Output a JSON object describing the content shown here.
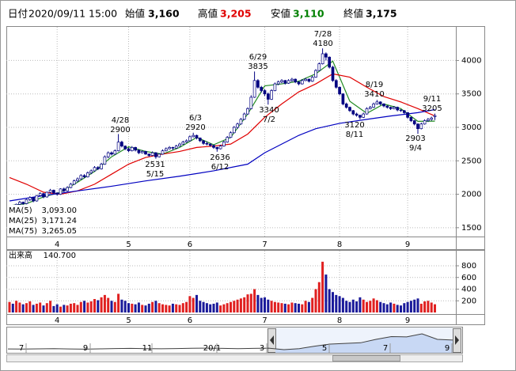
{
  "header": {
    "date_label": "日付",
    "date": "2020/09/11 15:00",
    "open_label": "始値",
    "open": {
      "value": 3160,
      "label": "3,160"
    },
    "high_label": "高値",
    "high": {
      "value": 3205,
      "label": "3,205"
    },
    "low_label": "安値",
    "low": {
      "value": 3110,
      "label": "3,110"
    },
    "close_label": "終値",
    "close": {
      "value": 3175,
      "label": "3,175"
    }
  },
  "chart_data": [
    {
      "type": "candlestick",
      "ylim": [
        1380,
        4490
      ],
      "yticks": [
        1500,
        2000,
        2500,
        3000,
        3500,
        4000
      ],
      "grid": true,
      "x_labels": [
        "4",
        "5",
        "6",
        "7",
        "8",
        "9"
      ],
      "up_color": "#ffffff",
      "down_color": "#000080",
      "edge_color": "#000080",
      "ohlc": [
        [
          1800,
          1840,
          1770,
          1820
        ],
        [
          1820,
          1830,
          1770,
          1790
        ],
        [
          1790,
          1860,
          1780,
          1850
        ],
        [
          1850,
          1900,
          1840,
          1880
        ],
        [
          1880,
          1890,
          1840,
          1860
        ],
        [
          1860,
          1930,
          1850,
          1920
        ],
        [
          1920,
          1970,
          1900,
          1950
        ],
        [
          1950,
          1960,
          1880,
          1900
        ],
        [
          1900,
          1990,
          1890,
          1980
        ],
        [
          1980,
          2030,
          1970,
          2010
        ],
        [
          2010,
          2020,
          1940,
          1960
        ],
        [
          1960,
          2040,
          1950,
          2030
        ],
        [
          2030,
          2080,
          2010,
          2060
        ],
        [
          2060,
          2070,
          2000,
          2020
        ],
        [
          2020,
          2030,
          1980,
          2000
        ],
        [
          2000,
          2090,
          1990,
          2080
        ],
        [
          2080,
          2100,
          2030,
          2050
        ],
        [
          2050,
          2120,
          2040,
          2100
        ],
        [
          2100,
          2170,
          2090,
          2150
        ],
        [
          2150,
          2220,
          2140,
          2200
        ],
        [
          2200,
          2250,
          2180,
          2230
        ],
        [
          2230,
          2300,
          2220,
          2280
        ],
        [
          2280,
          2300,
          2240,
          2260
        ],
        [
          2260,
          2340,
          2250,
          2320
        ],
        [
          2320,
          2370,
          2300,
          2350
        ],
        [
          2350,
          2420,
          2340,
          2400
        ],
        [
          2400,
          2420,
          2360,
          2380
        ],
        [
          2380,
          2470,
          2370,
          2450
        ],
        [
          2450,
          2580,
          2440,
          2560
        ],
        [
          2560,
          2640,
          2540,
          2620
        ],
        [
          2620,
          2640,
          2580,
          2600
        ],
        [
          2600,
          2670,
          2590,
          2650
        ],
        [
          2650,
          2900,
          2640,
          2780
        ],
        [
          2780,
          2800,
          2700,
          2720
        ],
        [
          2720,
          2730,
          2660,
          2680
        ],
        [
          2680,
          2700,
          2630,
          2650
        ],
        [
          2650,
          2720,
          2640,
          2700
        ],
        [
          2700,
          2710,
          2640,
          2660
        ],
        [
          2660,
          2670,
          2600,
          2620
        ],
        [
          2620,
          2660,
          2610,
          2640
        ],
        [
          2640,
          2650,
          2590,
          2600
        ],
        [
          2600,
          2610,
          2560,
          2580
        ],
        [
          2580,
          2640,
          2570,
          2620
        ],
        [
          2620,
          2630,
          2531,
          2560
        ],
        [
          2560,
          2610,
          2550,
          2600
        ],
        [
          2600,
          2670,
          2590,
          2650
        ],
        [
          2650,
          2700,
          2640,
          2680
        ],
        [
          2680,
          2720,
          2670,
          2700
        ],
        [
          2700,
          2710,
          2660,
          2690
        ],
        [
          2690,
          2740,
          2680,
          2720
        ],
        [
          2720,
          2770,
          2710,
          2750
        ],
        [
          2750,
          2800,
          2740,
          2780
        ],
        [
          2780,
          2820,
          2770,
          2800
        ],
        [
          2800,
          2880,
          2790,
          2860
        ],
        [
          2860,
          2920,
          2850,
          2880
        ],
        [
          2880,
          2890,
          2820,
          2840
        ],
        [
          2840,
          2850,
          2780,
          2800
        ],
        [
          2800,
          2810,
          2740,
          2760
        ],
        [
          2760,
          2790,
          2730,
          2750
        ],
        [
          2750,
          2760,
          2710,
          2730
        ],
        [
          2730,
          2740,
          2680,
          2700
        ],
        [
          2700,
          2710,
          2636,
          2680
        ],
        [
          2680,
          2740,
          2670,
          2720
        ],
        [
          2720,
          2800,
          2710,
          2780
        ],
        [
          2780,
          2870,
          2770,
          2850
        ],
        [
          2850,
          2940,
          2840,
          2920
        ],
        [
          2920,
          3020,
          2910,
          3000
        ],
        [
          3000,
          3070,
          2980,
          3050
        ],
        [
          3050,
          3140,
          3040,
          3120
        ],
        [
          3120,
          3220,
          3110,
          3200
        ],
        [
          3200,
          3300,
          3190,
          3280
        ],
        [
          3280,
          3480,
          3270,
          3450
        ],
        [
          3450,
          3835,
          3440,
          3700
        ],
        [
          3700,
          3720,
          3580,
          3600
        ],
        [
          3600,
          3620,
          3520,
          3550
        ],
        [
          3550,
          3570,
          3470,
          3500
        ],
        [
          3500,
          3520,
          3340,
          3420
        ],
        [
          3420,
          3570,
          3410,
          3550
        ],
        [
          3550,
          3670,
          3540,
          3650
        ],
        [
          3650,
          3700,
          3630,
          3680
        ],
        [
          3680,
          3720,
          3660,
          3700
        ],
        [
          3700,
          3710,
          3640,
          3660
        ],
        [
          3660,
          3720,
          3650,
          3700
        ],
        [
          3700,
          3740,
          3680,
          3720
        ],
        [
          3720,
          3730,
          3660,
          3680
        ],
        [
          3680,
          3690,
          3630,
          3650
        ],
        [
          3650,
          3720,
          3640,
          3700
        ],
        [
          3700,
          3740,
          3690,
          3720
        ],
        [
          3720,
          3730,
          3670,
          3690
        ],
        [
          3690,
          3770,
          3680,
          3750
        ],
        [
          3750,
          3870,
          3740,
          3850
        ],
        [
          3850,
          3970,
          3840,
          3950
        ],
        [
          3950,
          4180,
          3940,
          4100
        ],
        [
          4100,
          4120,
          4000,
          4050
        ],
        [
          4050,
          4060,
          3880,
          3900
        ],
        [
          3900,
          3920,
          3680,
          3700
        ],
        [
          3700,
          3720,
          3580,
          3600
        ],
        [
          3600,
          3610,
          3480,
          3500
        ],
        [
          3500,
          3510,
          3330,
          3350
        ],
        [
          3350,
          3370,
          3280,
          3300
        ],
        [
          3300,
          3310,
          3230,
          3250
        ],
        [
          3250,
          3260,
          3180,
          3200
        ],
        [
          3200,
          3220,
          3160,
          3180
        ],
        [
          3180,
          3190,
          3120,
          3150
        ],
        [
          3150,
          3220,
          3140,
          3200
        ],
        [
          3200,
          3300,
          3190,
          3280
        ],
        [
          3280,
          3320,
          3270,
          3300
        ],
        [
          3300,
          3370,
          3290,
          3350
        ],
        [
          3350,
          3410,
          3340,
          3380
        ],
        [
          3380,
          3390,
          3330,
          3350
        ],
        [
          3350,
          3360,
          3300,
          3320
        ],
        [
          3320,
          3330,
          3280,
          3300
        ],
        [
          3300,
          3310,
          3260,
          3280
        ],
        [
          3280,
          3320,
          3270,
          3300
        ],
        [
          3300,
          3310,
          3240,
          3260
        ],
        [
          3260,
          3270,
          3230,
          3250
        ],
        [
          3250,
          3260,
          3200,
          3220
        ],
        [
          3220,
          3230,
          3130,
          3150
        ],
        [
          3150,
          3160,
          3080,
          3100
        ],
        [
          3100,
          3110,
          3030,
          3050
        ],
        [
          3050,
          3060,
          2903,
          2980
        ],
        [
          2980,
          3070,
          2970,
          3050
        ],
        [
          3050,
          3120,
          3040,
          3100
        ],
        [
          3100,
          3140,
          3080,
          3120
        ],
        [
          3120,
          3160,
          3100,
          3140
        ],
        [
          3160,
          3205,
          3110,
          3175
        ]
      ],
      "ma": [
        {
          "name": "MA(5)",
          "color": "#228b22",
          "last_value": 3093,
          "last_value_label": "3,093.00",
          "x": [
            0,
            5,
            10,
            15,
            20,
            25,
            30,
            35,
            40,
            45,
            50,
            55,
            60,
            65,
            70,
            75,
            80,
            85,
            90,
            95,
            100,
            105,
            110,
            115,
            120,
            125
          ],
          "values": [
            1830,
            1860,
            1960,
            2030,
            2180,
            2340,
            2560,
            2710,
            2640,
            2600,
            2700,
            2850,
            2740,
            2850,
            3200,
            3620,
            3650,
            3690,
            3800,
            3990,
            3390,
            3210,
            3350,
            3280,
            3090,
            3093
          ]
        },
        {
          "name": "MA(25)",
          "color": "#e00000",
          "last_value": 3171.24,
          "last_value_label": "3,171.24",
          "x": [
            0,
            5,
            10,
            15,
            20,
            25,
            30,
            35,
            40,
            45,
            50,
            55,
            60,
            65,
            70,
            75,
            80,
            85,
            90,
            95,
            100,
            105,
            110,
            115,
            120,
            125
          ],
          "values": [
            2250,
            2150,
            2030,
            2000,
            2050,
            2150,
            2300,
            2450,
            2550,
            2600,
            2640,
            2700,
            2720,
            2750,
            2900,
            3150,
            3350,
            3530,
            3650,
            3800,
            3750,
            3600,
            3460,
            3380,
            3280,
            3171.24
          ]
        },
        {
          "name": "MA(75)",
          "color": "#0000c0",
          "last_value": 3265.05,
          "last_value_label": "3,265.05",
          "x": [
            0,
            10,
            20,
            30,
            40,
            50,
            60,
            70,
            75,
            80,
            85,
            90,
            97,
            105,
            112,
            120,
            125
          ],
          "values": [
            1900,
            1980,
            2050,
            2120,
            2200,
            2270,
            2350,
            2450,
            2620,
            2750,
            2880,
            2980,
            3060,
            3120,
            3170,
            3220,
            3265.05
          ]
        }
      ],
      "annotations": [
        {
          "date": "4/28",
          "value": 2900
        },
        {
          "date": "5/15",
          "value": 2531
        },
        {
          "date": "6/3",
          "value": 2920
        },
        {
          "date": "6/12",
          "value": 2636
        },
        {
          "date": "6/29",
          "value": 3835
        },
        {
          "date": "7/2",
          "value": 3340
        },
        {
          "date": "7/28",
          "value": 4180
        },
        {
          "date": "8/19",
          "value": 3410
        },
        {
          "date": "8/11",
          "value": 3120
        },
        {
          "date": "9/4",
          "value": 2903
        },
        {
          "date": "9/11",
          "value": 3205
        }
      ]
    },
    {
      "type": "bar",
      "title": "出来高",
      "last": {
        "value": 140.7,
        "label": "140.700"
      },
      "ylim": [
        0,
        990
      ],
      "yticks": [
        200,
        400,
        600,
        800
      ],
      "grid": true,
      "x_labels": [
        "4",
        "5",
        "6",
        "7",
        "8",
        "9"
      ],
      "up_color": "#e02020",
      "down_color": "#1a1a9a",
      "values": [
        180,
        150,
        200,
        170,
        140,
        160,
        190,
        130,
        150,
        170,
        120,
        160,
        200,
        110,
        140,
        100,
        130,
        120,
        150,
        160,
        130,
        180,
        200,
        170,
        190,
        230,
        210,
        260,
        300,
        250,
        200,
        180,
        320,
        220,
        200,
        160,
        150,
        140,
        170,
        130,
        120,
        150,
        180,
        200,
        160,
        140,
        130,
        120,
        150,
        140,
        130,
        160,
        180,
        280,
        250,
        300,
        200,
        180,
        160,
        140,
        150,
        170,
        120,
        140,
        160,
        180,
        200,
        220,
        240,
        260,
        310,
        320,
        400,
        300,
        250,
        260,
        220,
        200,
        180,
        170,
        160,
        150,
        140,
        170,
        160,
        150,
        140,
        200,
        180,
        250,
        400,
        520,
        870,
        650,
        400,
        350,
        300,
        280,
        250,
        200,
        180,
        220,
        190,
        260,
        220,
        180,
        200,
        240,
        210,
        180,
        160,
        140,
        170,
        150,
        130,
        120,
        160,
        180,
        200,
        220,
        240,
        150,
        190,
        200,
        170,
        140.7
      ]
    },
    {
      "type": "line",
      "x_labels": [
        "7",
        "9",
        "11",
        "20/1",
        "3",
        "5",
        "7",
        "9"
      ],
      "color": "#404040",
      "fill": "#c8d8f4",
      "values": [
        1900,
        1880,
        1920,
        1950,
        1900,
        1870,
        1920,
        1960,
        1980,
        1950,
        1930,
        1960,
        2000,
        2020,
        1980,
        1950,
        1990,
        2010,
        1800,
        1950,
        2300,
        2600,
        2700,
        2800,
        3300,
        3700,
        3650,
        4100,
        3300,
        3200
      ]
    }
  ]
}
